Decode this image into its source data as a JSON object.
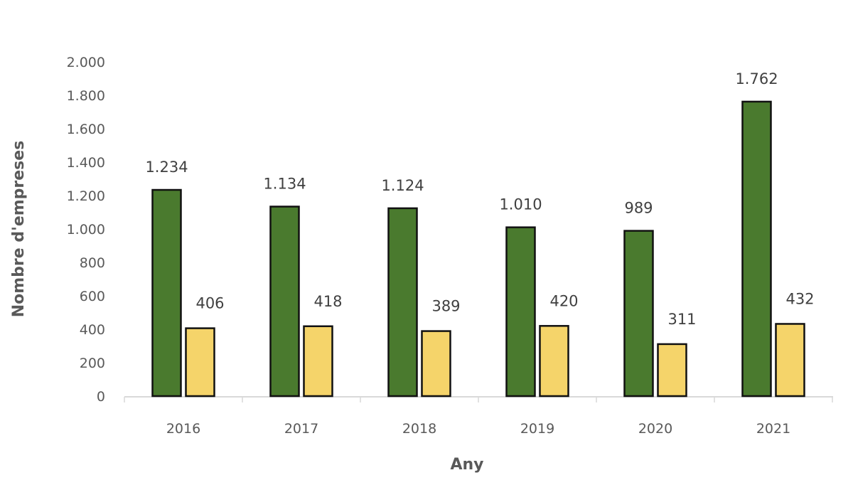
{
  "chart_data": {
    "type": "bar",
    "title": "",
    "xlabel": "Any",
    "ylabel": "Nombre d'empreses",
    "categories": [
      "2016",
      "2017",
      "2018",
      "2019",
      "2020",
      "2021"
    ],
    "series": [
      {
        "name": "Series 1",
        "color": "#4a7a2e",
        "values": [
          1234,
          1134,
          1124,
          1010,
          989,
          1762
        ],
        "labels": [
          "1.234",
          "1.134",
          "1.124",
          "1.010",
          "989",
          "1.762"
        ]
      },
      {
        "name": "Series 2",
        "color": "#f5d46a",
        "values": [
          406,
          418,
          389,
          420,
          311,
          432
        ],
        "labels": [
          "406",
          "418",
          "389",
          "420",
          "311",
          "432"
        ]
      }
    ],
    "ylim": [
      0,
      2000
    ],
    "yticks": [
      0,
      200,
      400,
      600,
      800,
      1000,
      1200,
      1400,
      1600,
      1800,
      2000
    ],
    "ytick_labels": [
      "0",
      "200",
      "400",
      "600",
      "800",
      "1.000",
      "1.200",
      "1.400",
      "1.600",
      "1.800",
      "2.000"
    ],
    "grid": false,
    "legend": "none",
    "bar_border_color": "#111111"
  }
}
